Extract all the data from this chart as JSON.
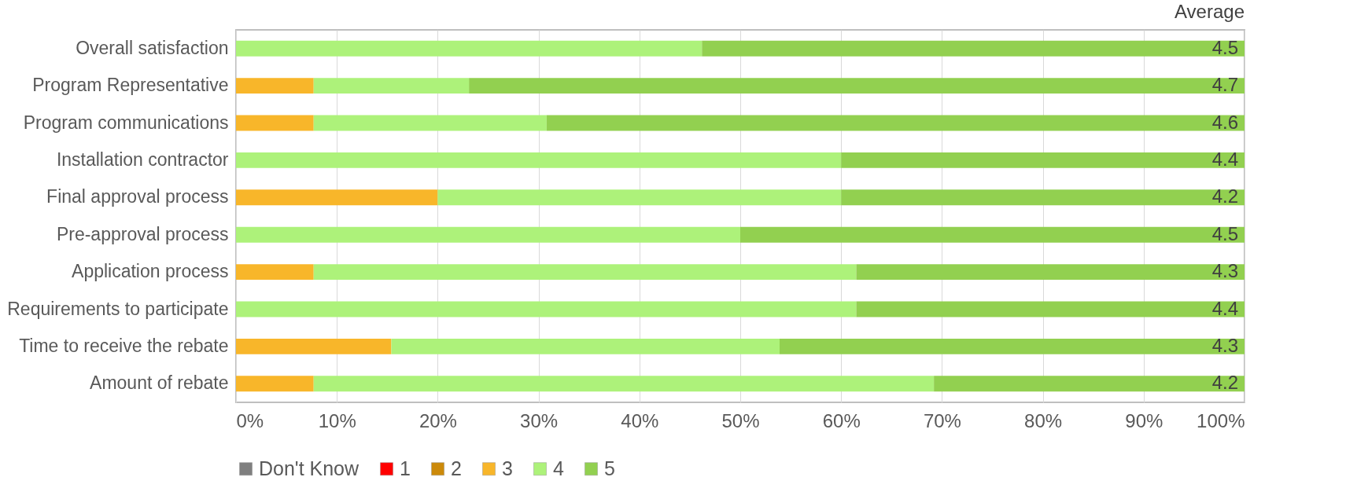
{
  "chart_data": {
    "type": "bar",
    "orientation": "horizontal",
    "stacked": true,
    "categories": [
      "Overall satisfaction",
      "Program Representative",
      "Program communications",
      "Installation contractor",
      "Final approval process",
      "Pre-approval process",
      "Application process",
      "Requirements to participate",
      "Time to receive the rebate",
      "Amount of rebate"
    ],
    "series": [
      {
        "name": "Don't Know",
        "color": "#7f7f7f",
        "values": [
          0,
          0,
          0,
          0,
          0,
          0,
          0,
          0,
          0,
          0
        ]
      },
      {
        "name": "1",
        "color": "#ff0000",
        "values": [
          0,
          0,
          0,
          0,
          0,
          0,
          0,
          0,
          0,
          0
        ]
      },
      {
        "name": "2",
        "color": "#cc8a0a",
        "values": [
          0,
          0,
          0,
          0,
          0,
          0,
          0,
          0,
          0,
          0
        ]
      },
      {
        "name": "3",
        "color": "#f8b62a",
        "values": [
          0,
          7.7,
          7.7,
          0,
          20,
          0,
          7.7,
          0,
          15.4,
          7.7
        ]
      },
      {
        "name": "4",
        "color": "#adf27a",
        "values": [
          46.2,
          15.4,
          23.1,
          60,
          40,
          50,
          53.8,
          61.5,
          38.5,
          61.5
        ]
      },
      {
        "name": "5",
        "color": "#92d050",
        "values": [
          53.8,
          76.9,
          69.2,
          40,
          40,
          50,
          38.5,
          38.5,
          46.1,
          30.8
        ]
      }
    ],
    "xlim": [
      0,
      100
    ],
    "xticks": [
      {
        "value": 0,
        "label": "0%"
      },
      {
        "value": 10,
        "label": "10%"
      },
      {
        "value": 20,
        "label": "20%"
      },
      {
        "value": 30,
        "label": "30%"
      },
      {
        "value": 40,
        "label": "40%"
      },
      {
        "value": 50,
        "label": "50%"
      },
      {
        "value": 60,
        "label": "60%"
      },
      {
        "value": 70,
        "label": "70%"
      },
      {
        "value": 80,
        "label": "80%"
      },
      {
        "value": 90,
        "label": "90%"
      },
      {
        "value": 100,
        "label": "100%"
      }
    ],
    "grid": "x",
    "legend": "bottom",
    "annotations": [
      "Average",
      "4.5",
      "4.7",
      "4.6",
      "4.4",
      "4.2",
      "4.5",
      "4.3",
      "4.4",
      "4.3",
      "4.2"
    ]
  }
}
